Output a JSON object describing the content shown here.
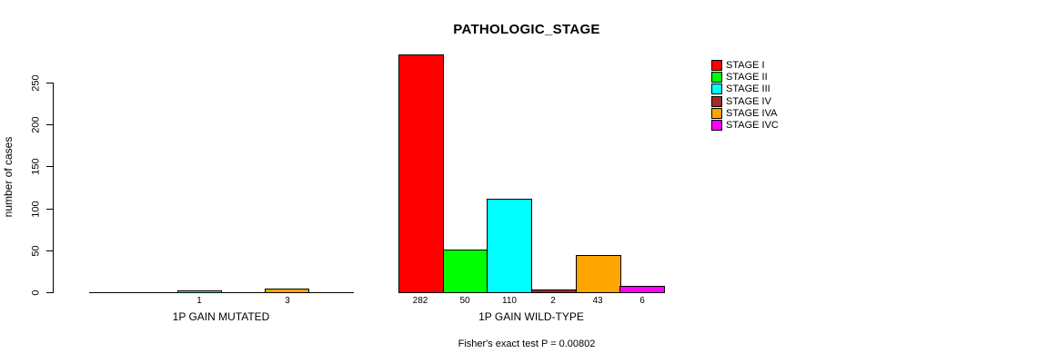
{
  "chart_data": {
    "type": "bar",
    "title": "PATHOLOGIC_STAGE",
    "ylabel": "number of cases",
    "xlabel": "",
    "ylim": [
      0,
      250
    ],
    "y_ticks": [
      0,
      50,
      100,
      150,
      200,
      250
    ],
    "categories": [
      "1P GAIN MUTATED",
      "1P GAIN WILD-TYPE"
    ],
    "series": [
      {
        "name": "STAGE I",
        "color": "#FF0000",
        "values": [
          0,
          282
        ]
      },
      {
        "name": "STAGE II",
        "color": "#00FF00",
        "values": [
          0,
          50
        ]
      },
      {
        "name": "STAGE III",
        "color": "#00FFFF",
        "values": [
          1,
          110
        ]
      },
      {
        "name": "STAGE IV",
        "color": "#A52A2A",
        "values": [
          0,
          2
        ]
      },
      {
        "name": "STAGE IVA",
        "color": "#FFA500",
        "values": [
          3,
          43
        ]
      },
      {
        "name": "STAGE IVC",
        "color": "#FF00FF",
        "values": [
          0,
          6
        ]
      }
    ],
    "bar_value_labels": {
      "1P GAIN MUTATED": [
        "",
        "",
        "1",
        "",
        "3",
        ""
      ],
      "1P GAIN WILD-TYPE": [
        "282",
        "50",
        "110",
        "2",
        "43",
        "6"
      ]
    },
    "annotation": "Fisher's exact test P = 0.00802",
    "legend_position": "right",
    "grid": false,
    "axis_color": "#000000",
    "bar_border_color": "#000000"
  }
}
